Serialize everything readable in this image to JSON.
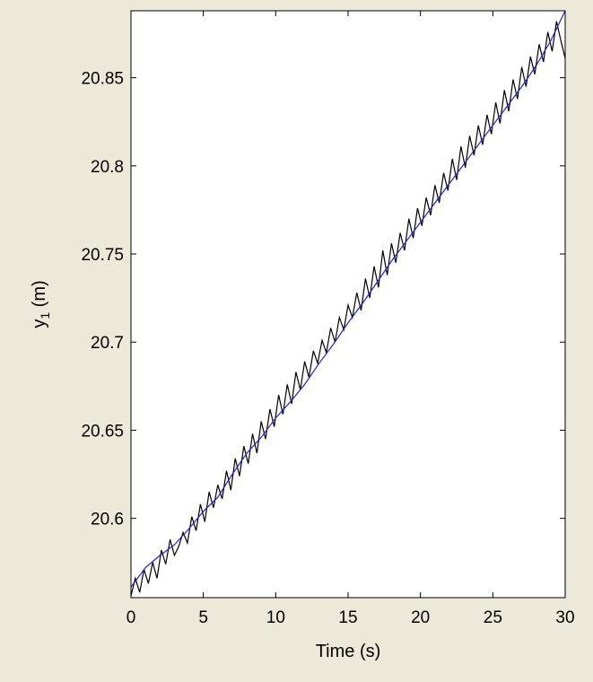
{
  "chart_data": {
    "type": "line",
    "title": "",
    "xlabel": "Time (s)",
    "ylabel_main": "y",
    "ylabel_sub": "1",
    "ylabel_unit": " (m)",
    "xlim": [
      0,
      30
    ],
    "ylim": [
      20.555,
      20.888
    ],
    "xticks": [
      0,
      5,
      10,
      15,
      20,
      25,
      30
    ],
    "xtick_labels": [
      "0",
      "5",
      "10",
      "15",
      "20",
      "25",
      "30"
    ],
    "yticks": [
      20.6,
      20.65,
      20.7,
      20.75,
      20.8,
      20.85
    ],
    "ytick_labels": [
      "20.6",
      "20.65",
      "20.7",
      "20.75",
      "20.8",
      "20.85"
    ],
    "grid": false,
    "legend": "none",
    "colors": {
      "measured": "#000000",
      "estimate": "#1f1fd6",
      "background": "#ece9d8",
      "plot_area": "#ffffff"
    },
    "series": [
      {
        "values_note": "",
        "x": [
          0,
          1,
          2,
          3,
          4,
          5,
          6,
          7,
          8,
          9,
          10,
          11,
          12,
          13,
          14,
          15,
          16,
          17,
          18,
          19,
          20,
          21,
          22,
          23,
          24,
          25,
          26,
          27,
          28,
          29,
          30
        ],
        "y": [
          20.561,
          20.572,
          20.579,
          20.585,
          20.594,
          20.604,
          20.612,
          20.625,
          20.637,
          20.646,
          20.657,
          20.666,
          20.676,
          20.688,
          20.699,
          20.711,
          20.722,
          20.734,
          20.746,
          20.757,
          20.768,
          20.779,
          20.79,
          20.801,
          20.812,
          20.823,
          20.834,
          20.845,
          20.857,
          20.871,
          20.888
        ]
      },
      {
        "x": [
          0,
          0.3,
          0.6,
          0.9,
          1.2,
          1.5,
          1.8,
          2.1,
          2.4,
          2.7,
          3.0,
          3.3,
          3.6,
          3.9,
          4.2,
          4.5,
          4.8,
          5.1,
          5.4,
          5.7,
          6.0,
          6.3,
          6.6,
          6.9,
          7.2,
          7.5,
          7.8,
          8.1,
          8.4,
          8.7,
          9.0,
          9.3,
          9.6,
          9.9,
          10.2,
          10.5,
          10.8,
          11.1,
          11.4,
          11.7,
          12.0,
          12.3,
          12.6,
          12.9,
          13.2,
          13.5,
          13.8,
          14.1,
          14.4,
          14.7,
          15.0,
          15.3,
          15.6,
          15.9,
          16.2,
          16.5,
          16.8,
          17.1,
          17.4,
          17.7,
          18.0,
          18.3,
          18.6,
          18.9,
          19.2,
          19.5,
          19.8,
          20.1,
          20.4,
          20.7,
          21.0,
          21.3,
          21.6,
          21.9,
          22.2,
          22.5,
          22.8,
          23.1,
          23.4,
          23.7,
          24.0,
          24.3,
          24.6,
          24.9,
          25.2,
          25.5,
          25.8,
          26.1,
          26.4,
          26.7,
          27.0,
          27.3,
          27.6,
          27.9,
          28.2,
          28.5,
          28.8,
          29.1,
          29.4,
          29.7,
          30.0
        ],
        "y": [
          20.556,
          20.566,
          20.558,
          20.571,
          20.563,
          20.575,
          20.566,
          20.582,
          20.574,
          20.588,
          20.579,
          20.584,
          20.592,
          20.586,
          20.601,
          20.593,
          20.608,
          20.598,
          20.615,
          20.606,
          20.619,
          20.611,
          20.627,
          20.616,
          20.634,
          20.624,
          20.641,
          20.631,
          20.648,
          20.637,
          20.655,
          20.645,
          20.662,
          20.652,
          20.67,
          20.659,
          20.676,
          20.665,
          20.683,
          20.673,
          20.689,
          20.68,
          20.695,
          20.688,
          20.701,
          20.694,
          20.708,
          20.7,
          20.714,
          20.707,
          20.721,
          20.714,
          20.728,
          20.718,
          20.736,
          20.725,
          20.743,
          20.731,
          20.752,
          20.738,
          20.756,
          20.745,
          20.762,
          20.752,
          20.77,
          20.759,
          20.776,
          20.766,
          20.782,
          20.772,
          20.789,
          20.779,
          20.796,
          20.786,
          20.804,
          20.792,
          20.811,
          20.799,
          20.817,
          20.806,
          20.823,
          20.812,
          20.829,
          20.818,
          20.836,
          20.824,
          20.843,
          20.831,
          20.849,
          20.838,
          20.856,
          20.845,
          20.862,
          20.852,
          20.869,
          20.859,
          20.876,
          20.865,
          20.882,
          20.871,
          20.861
        ]
      }
    ]
  }
}
